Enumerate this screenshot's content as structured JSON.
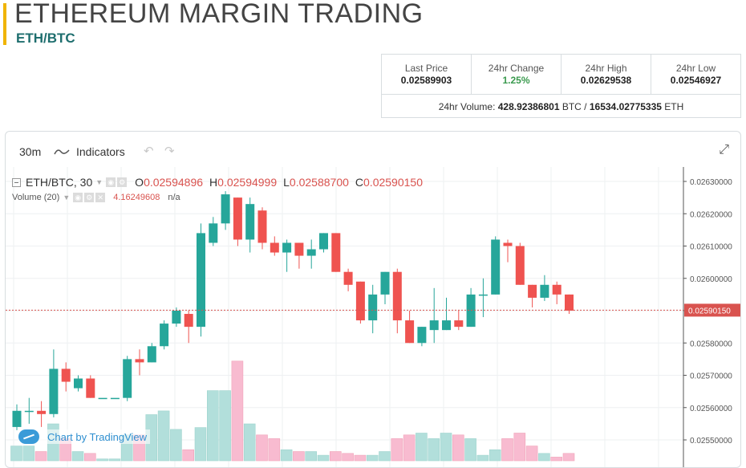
{
  "header": {
    "title": "ETHEREUM MARGIN TRADING",
    "subtitle": "ETH/BTC"
  },
  "stats": {
    "last_price_label": "Last Price",
    "last_price": "0.02589903",
    "change_label": "24hr Change",
    "change": "1.25%",
    "high_label": "24hr High",
    "high": "0.02629538",
    "low_label": "24hr Low",
    "low": "0.02546927",
    "volume_label": "24hr Volume:",
    "volume_btc": "428.92386801",
    "btc_unit": "BTC /",
    "volume_eth": "16534.02775335",
    "eth_unit": "ETH"
  },
  "toolbar": {
    "interval": "30m",
    "indicators": "Indicators"
  },
  "legend": {
    "symbol": "ETH/BTC, 30",
    "o_label": "O",
    "o_value": "0.02594896",
    "h_label": "H",
    "h_value": "0.02594999",
    "l_label": "L",
    "l_value": "0.02588700",
    "c_label": "C",
    "c_value": "0.02590150",
    "volume_label": "Volume (20)",
    "volume_value": "4.16249608",
    "volume_na": "n/a"
  },
  "watermark": "Chart by TradingView",
  "colors": {
    "up": "#26a69a",
    "down": "#ef5350",
    "vol_up": "#b2dfdb",
    "vol_down": "#f8bbd0",
    "price_line": "#d9534f"
  },
  "chart_data": {
    "type": "candlestick",
    "interval": "30",
    "y_ticks": [
      "0.02630000",
      "0.02620000",
      "0.02610000",
      "0.02600000",
      "0.02590000",
      "0.02580000",
      "0.02570000",
      "0.02560000",
      "0.02550000"
    ],
    "ylim": [
      0.02545,
      0.02633
    ],
    "last_price_label": "0.02590150",
    "last_price": 0.0259015,
    "candles": [
      {
        "o": 0.02554,
        "h": 0.02561,
        "l": 0.02553,
        "c": 0.02559,
        "v": 8
      },
      {
        "o": 0.02559,
        "h": 0.02563,
        "l": 0.02555,
        "c": 0.02559,
        "v": 8
      },
      {
        "o": 0.02559,
        "h": 0.02562,
        "l": 0.02554,
        "c": 0.02558,
        "v": 5
      },
      {
        "o": 0.02558,
        "h": 0.02578,
        "l": 0.02557,
        "c": 0.02572,
        "v": 20
      },
      {
        "o": 0.02572,
        "h": 0.02574,
        "l": 0.02565,
        "c": 0.02568,
        "v": 12
      },
      {
        "o": 0.02566,
        "h": 0.0257,
        "l": 0.02565,
        "c": 0.02569,
        "v": 5
      },
      {
        "o": 0.02569,
        "h": 0.0257,
        "l": 0.02563,
        "c": 0.02563,
        "v": 4
      },
      {
        "o": 0.02563,
        "h": 0.02563,
        "l": 0.02563,
        "c": 0.02563,
        "v": 1
      },
      {
        "o": 0.02563,
        "h": 0.02563,
        "l": 0.02563,
        "c": 0.02563,
        "v": 1
      },
      {
        "o": 0.02563,
        "h": 0.02576,
        "l": 0.02562,
        "c": 0.02575,
        "v": 14
      },
      {
        "o": 0.02575,
        "h": 0.02578,
        "l": 0.0257,
        "c": 0.02574,
        "v": 14
      },
      {
        "o": 0.02574,
        "h": 0.0258,
        "l": 0.02574,
        "c": 0.02579,
        "v": 25
      },
      {
        "o": 0.02579,
        "h": 0.02587,
        "l": 0.02578,
        "c": 0.02586,
        "v": 27
      },
      {
        "o": 0.02586,
        "h": 0.02591,
        "l": 0.02585,
        "c": 0.0259,
        "v": 17
      },
      {
        "o": 0.02589,
        "h": 0.0259,
        "l": 0.0258,
        "c": 0.02585,
        "v": 6
      },
      {
        "o": 0.02585,
        "h": 0.02617,
        "l": 0.02582,
        "c": 0.02614,
        "v": 18
      },
      {
        "o": 0.02611,
        "h": 0.02619,
        "l": 0.0261,
        "c": 0.02617,
        "v": 38
      },
      {
        "o": 0.02617,
        "h": 0.02627,
        "l": 0.02615,
        "c": 0.02626,
        "v": 38
      },
      {
        "o": 0.02625,
        "h": 0.02625,
        "l": 0.0261,
        "c": 0.02612,
        "v": 54
      },
      {
        "o": 0.02612,
        "h": 0.02625,
        "l": 0.02608,
        "c": 0.02623,
        "v": 20
      },
      {
        "o": 0.02621,
        "h": 0.02622,
        "l": 0.02609,
        "c": 0.02611,
        "v": 14
      },
      {
        "o": 0.02611,
        "h": 0.02613,
        "l": 0.02607,
        "c": 0.02608,
        "v": 12
      },
      {
        "o": 0.02608,
        "h": 0.02612,
        "l": 0.02602,
        "c": 0.02611,
        "v": 6
      },
      {
        "o": 0.02611,
        "h": 0.02611,
        "l": 0.02603,
        "c": 0.02607,
        "v": 5
      },
      {
        "o": 0.02607,
        "h": 0.02612,
        "l": 0.02603,
        "c": 0.02609,
        "v": 5
      },
      {
        "o": 0.02609,
        "h": 0.02614,
        "l": 0.02608,
        "c": 0.02614,
        "v": 3
      },
      {
        "o": 0.02614,
        "h": 0.02614,
        "l": 0.02602,
        "c": 0.02602,
        "v": 5
      },
      {
        "o": 0.02602,
        "h": 0.02603,
        "l": 0.02596,
        "c": 0.02598,
        "v": 4
      },
      {
        "o": 0.02599,
        "h": 0.02599,
        "l": 0.02586,
        "c": 0.02587,
        "v": 3
      },
      {
        "o": 0.02587,
        "h": 0.02598,
        "l": 0.02583,
        "c": 0.02595,
        "v": 3
      },
      {
        "o": 0.02595,
        "h": 0.02602,
        "l": 0.02592,
        "c": 0.02602,
        "v": 5
      },
      {
        "o": 0.02602,
        "h": 0.02603,
        "l": 0.02583,
        "c": 0.02587,
        "v": 12
      },
      {
        "o": 0.02587,
        "h": 0.0259,
        "l": 0.0258,
        "c": 0.0258,
        "v": 14
      },
      {
        "o": 0.0258,
        "h": 0.02585,
        "l": 0.02579,
        "c": 0.02585,
        "v": 15
      },
      {
        "o": 0.02584,
        "h": 0.02597,
        "l": 0.0258,
        "c": 0.02587,
        "v": 12
      },
      {
        "o": 0.02584,
        "h": 0.02594,
        "l": 0.02584,
        "c": 0.02587,
        "v": 15
      },
      {
        "o": 0.02587,
        "h": 0.0259,
        "l": 0.02584,
        "c": 0.02585,
        "v": 14
      },
      {
        "o": 0.02585,
        "h": 0.02597,
        "l": 0.02585,
        "c": 0.02595,
        "v": 12
      },
      {
        "o": 0.02595,
        "h": 0.026,
        "l": 0.02588,
        "c": 0.02595,
        "v": 3
      },
      {
        "o": 0.02595,
        "h": 0.02613,
        "l": 0.02595,
        "c": 0.02612,
        "v": 6
      },
      {
        "o": 0.02611,
        "h": 0.02612,
        "l": 0.02605,
        "c": 0.0261,
        "v": 12
      },
      {
        "o": 0.0261,
        "h": 0.02611,
        "l": 0.02598,
        "c": 0.02598,
        "v": 15
      },
      {
        "o": 0.02598,
        "h": 0.02598,
        "l": 0.02591,
        "c": 0.02594,
        "v": 8
      },
      {
        "o": 0.02594,
        "h": 0.02601,
        "l": 0.02593,
        "c": 0.02598,
        "v": 4
      },
      {
        "o": 0.02598,
        "h": 0.02599,
        "l": 0.02592,
        "c": 0.02595,
        "v": 2
      },
      {
        "o": 0.02595,
        "h": 0.02595,
        "l": 0.02589,
        "c": 0.0259,
        "v": 4
      }
    ]
  }
}
